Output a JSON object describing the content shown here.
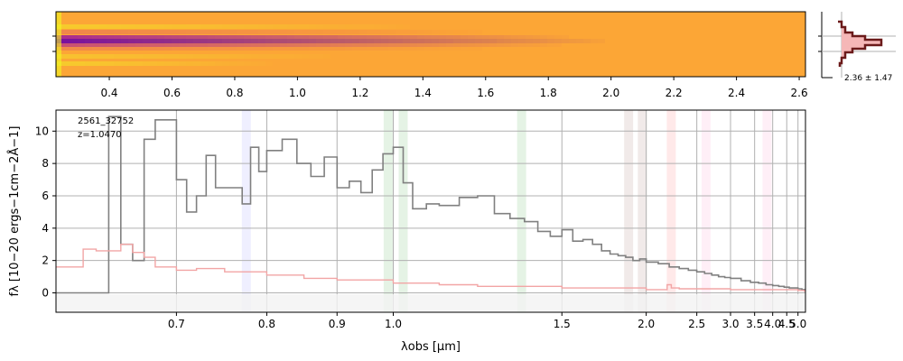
{
  "chart_data": [
    {
      "type": "heatmap",
      "role": "2D spectrum",
      "x_ticks": [
        "0.4",
        "0.6",
        "0.8",
        "1.0",
        "1.2",
        "1.4",
        "1.6",
        "1.8",
        "2.0",
        "2.2",
        "2.4",
        "2.6"
      ],
      "x_tick_values": [
        0.4,
        0.6,
        0.8,
        1.0,
        1.2,
        1.4,
        1.6,
        1.8,
        2.0,
        2.2,
        2.4,
        2.6
      ],
      "colormap": "plasma"
    },
    {
      "type": "line",
      "role": "cross-dispersion profile",
      "annotation": "2.36 ± 1.47",
      "colors": {
        "line": "#6b1a1a",
        "fill": "#f5b7b7"
      }
    },
    {
      "type": "line",
      "role": "1D spectrum",
      "xlabel": "λobs [μm]",
      "ylabel": "fλ [10−20 ergs−1cm−2Å−1]",
      "xscale": "reciprocal",
      "xlim": [
        0.6,
        5.4
      ],
      "ylim": [
        -1.2,
        11.3
      ],
      "x_ticks": [
        "0.7",
        "0.8",
        "0.9",
        "1.0",
        "1.5",
        "2.0",
        "2.5",
        "3.0",
        "3.5",
        "4.0",
        "4.5",
        "5.0"
      ],
      "x_tick_values": [
        0.7,
        0.8,
        0.9,
        1.0,
        1.5,
        2.0,
        2.5,
        3.0,
        3.5,
        4.0,
        4.5,
        5.0
      ],
      "y_ticks": [
        "0",
        "2",
        "4",
        "6",
        "8",
        "10"
      ],
      "y_tick_values": [
        0,
        2,
        4,
        6,
        8,
        10
      ],
      "grid": true,
      "annotations": [
        "2561_32752",
        "z=1.0470"
      ],
      "series": [
        {
          "color": "#808080",
          "x": [
            0.6,
            0.625,
            0.64,
            0.65,
            0.66,
            0.67,
            0.68,
            0.7,
            0.71,
            0.72,
            0.73,
            0.74,
            0.75,
            0.77,
            0.78,
            0.79,
            0.8,
            0.82,
            0.84,
            0.86,
            0.88,
            0.9,
            0.92,
            0.94,
            0.96,
            0.98,
            1.0,
            1.02,
            1.04,
            1.07,
            1.1,
            1.15,
            1.2,
            1.25,
            1.3,
            1.35,
            1.4,
            1.45,
            1.5,
            1.55,
            1.6,
            1.65,
            1.7,
            1.75,
            1.8,
            1.85,
            1.9,
            1.95,
            2.0,
            2.1,
            2.2,
            2.3,
            2.4,
            2.5,
            2.6,
            2.7,
            2.8,
            2.9,
            3.0,
            3.2,
            3.4,
            3.6,
            3.8,
            4.0,
            4.2,
            4.4,
            4.6,
            4.8,
            5.0,
            5.2,
            5.35
          ],
          "y": [
            0.0,
            0.0,
            10.9,
            3.0,
            2.0,
            9.5,
            10.7,
            7.0,
            5.0,
            6.0,
            8.5,
            6.5,
            6.5,
            5.5,
            9.0,
            7.5,
            8.8,
            9.5,
            8.0,
            7.2,
            8.4,
            6.5,
            6.9,
            6.2,
            7.6,
            8.6,
            9.0,
            6.8,
            5.2,
            5.5,
            5.4,
            5.9,
            6.0,
            4.9,
            4.6,
            4.4,
            3.8,
            3.5,
            3.9,
            3.2,
            3.3,
            3.0,
            2.6,
            2.4,
            2.3,
            2.2,
            2.0,
            2.1,
            1.9,
            1.8,
            1.6,
            1.5,
            1.4,
            1.3,
            1.2,
            1.1,
            1.0,
            0.95,
            0.9,
            0.75,
            0.65,
            0.6,
            0.5,
            0.45,
            0.4,
            0.35,
            0.3,
            0.3,
            0.25,
            0.2,
            0.15
          ]
        },
        {
          "color": "#f2a5a5",
          "x": [
            0.6,
            0.62,
            0.63,
            0.65,
            0.66,
            0.67,
            0.68,
            0.7,
            0.72,
            0.75,
            0.8,
            0.85,
            0.9,
            1.0,
            1.1,
            1.2,
            1.5,
            2.0,
            2.1,
            2.18,
            2.22,
            2.3,
            3.0,
            4.0,
            5.0,
            5.35
          ],
          "y": [
            1.6,
            2.7,
            2.6,
            3.0,
            2.5,
            2.2,
            1.6,
            1.4,
            1.5,
            1.3,
            1.1,
            0.9,
            0.8,
            0.6,
            0.5,
            0.4,
            0.3,
            0.2,
            0.2,
            0.5,
            0.3,
            0.25,
            0.2,
            0.2,
            0.15,
            0.1
          ]
        }
      ],
      "line_bands": [
        {
          "x": 0.775,
          "color": "#7f7fff"
        },
        {
          "x": 0.99,
          "color": "#2ca02c"
        },
        {
          "x": 1.02,
          "color": "#2ca02c"
        },
        {
          "x": 1.34,
          "color": "#2ca02c"
        },
        {
          "x": 1.87,
          "color": "#8c564b"
        },
        {
          "x": 1.97,
          "color": "#8c564b"
        },
        {
          "x": 2.22,
          "color": "#ff4d4d"
        },
        {
          "x": 2.62,
          "color": "#ff7fbf"
        },
        {
          "x": 3.83,
          "color": "#ff7fbf"
        }
      ]
    }
  ]
}
